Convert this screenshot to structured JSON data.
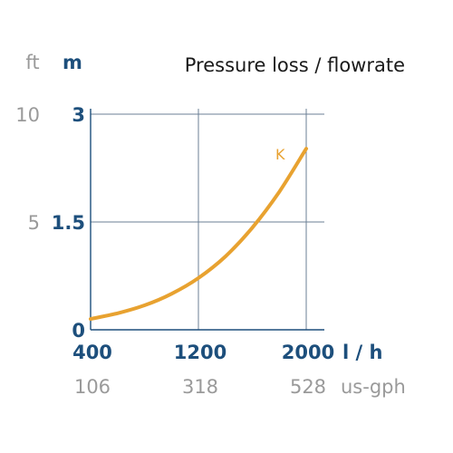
{
  "chart_data": {
    "type": "line",
    "title": "Pressure loss / flowrate",
    "y_units": {
      "primary": "m",
      "secondary": "ft"
    },
    "x_units": {
      "primary": "l / h",
      "secondary": "us-gph"
    },
    "xlim": [
      400,
      2000
    ],
    "ylim": [
      0,
      3
    ],
    "x_ticks": [
      {
        "value": 400,
        "label": "400",
        "secondary_label": "106"
      },
      {
        "value": 1200,
        "label": "1200",
        "secondary_label": "318"
      },
      {
        "value": 2000,
        "label": "2000",
        "secondary_label": "528"
      }
    ],
    "y_ticks": [
      {
        "value": 0,
        "label": "0",
        "secondary_label": ""
      },
      {
        "value": 1.5,
        "label": "1.5",
        "secondary_label": "5"
      },
      {
        "value": 3,
        "label": "3",
        "secondary_label": "10"
      }
    ],
    "grid": true,
    "series": [
      {
        "name": "K",
        "color": "#e8a230",
        "x": [
          400,
          600,
          800,
          1000,
          1200,
          1400,
          1600,
          1800,
          2000
        ],
        "y": [
          0.15,
          0.23,
          0.34,
          0.5,
          0.72,
          1.02,
          1.42,
          1.92,
          2.52
        ]
      }
    ]
  }
}
